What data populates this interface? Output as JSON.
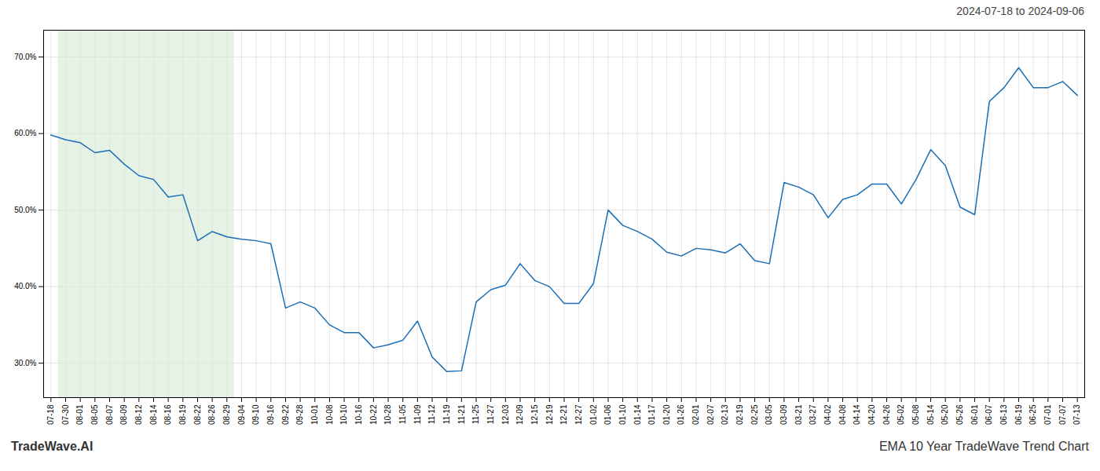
{
  "chart_data": {
    "type": "line",
    "title": "2024-07-18 to 2024-09-06",
    "annotations": [
      "TradeWave.AI",
      "EMA 10 Year TradeWave Trend Chart"
    ],
    "categories": [
      "07-18",
      "07-30",
      "08-01",
      "08-05",
      "08-07",
      "08-09",
      "08-12",
      "08-14",
      "08-16",
      "08-19",
      "08-22",
      "08-26",
      "08-29",
      "09-04",
      "09-10",
      "09-16",
      "09-22",
      "09-28",
      "10-01",
      "10-08",
      "10-10",
      "10-16",
      "10-22",
      "10-28",
      "11-05",
      "11-09",
      "11-12",
      "11-19",
      "11-21",
      "11-25",
      "11-27",
      "12-03",
      "12-09",
      "12-15",
      "12-19",
      "12-21",
      "12-27",
      "01-02",
      "01-06",
      "01-10",
      "01-14",
      "01-17",
      "01-20",
      "01-26",
      "02-01",
      "02-07",
      "02-13",
      "02-19",
      "02-25",
      "03-05",
      "03-09",
      "03-21",
      "03-27",
      "04-02",
      "04-08",
      "04-14",
      "04-20",
      "04-26",
      "05-02",
      "05-08",
      "05-14",
      "05-20",
      "05-26",
      "06-01",
      "06-07",
      "06-13",
      "06-19",
      "06-25",
      "07-01",
      "07-07",
      "07-13"
    ],
    "values": [
      0.598,
      0.592,
      0.588,
      0.575,
      0.578,
      0.56,
      0.545,
      0.54,
      0.517,
      0.52,
      0.46,
      0.472,
      0.465,
      0.462,
      0.46,
      0.456,
      0.372,
      0.38,
      0.372,
      0.35,
      0.34,
      0.34,
      0.32,
      0.324,
      0.33,
      0.355,
      0.308,
      0.289,
      0.29,
      0.38,
      0.396,
      0.402,
      0.43,
      0.408,
      0.4,
      0.378,
      0.378,
      0.404,
      0.5,
      0.48,
      0.472,
      0.462,
      0.445,
      0.44,
      0.45,
      0.448,
      0.444,
      0.456,
      0.434,
      0.43,
      0.536,
      0.53,
      0.52,
      0.49,
      0.514,
      0.52,
      0.534,
      0.534,
      0.508,
      0.54,
      0.579,
      0.558,
      0.504,
      0.494,
      0.642,
      0.66,
      0.686,
      0.66,
      0.66,
      0.668,
      0.65
    ],
    "color": "#1a6eb5",
    "shaded_region": {
      "start": "07-30",
      "end": "08-29",
      "color": "#d4ead4"
    },
    "ylim": [
      0.255,
      0.735
    ],
    "yticks": [
      {
        "value": 0.3,
        "label": "30.0%"
      },
      {
        "value": 0.4,
        "label": "40.0%"
      },
      {
        "value": 0.5,
        "label": "50.0%"
      },
      {
        "value": 0.6,
        "label": "60.0%"
      },
      {
        "value": 0.7,
        "label": "70.0%"
      }
    ],
    "grid": true
  }
}
